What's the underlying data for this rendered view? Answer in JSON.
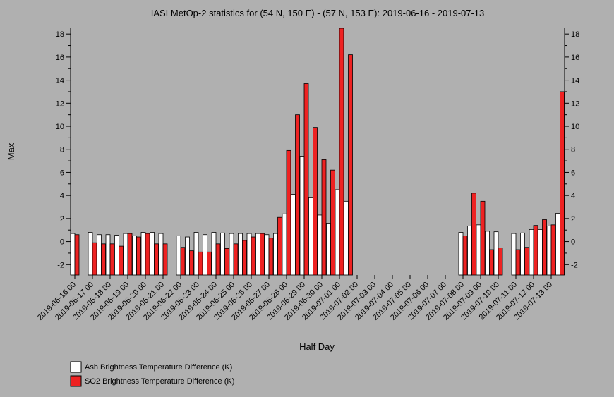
{
  "chart_data": {
    "type": "bar",
    "title": "IASI MetOp-2 statistics for (54 N, 150 E) - (57 N, 153 E): 2019-06-16 - 2019-07-13",
    "x_label": "Half Day",
    "y_label": "Max",
    "categories": [
      "2019-06-16 00",
      null,
      "2019-06-17 00",
      null,
      "2019-06-18 00",
      null,
      "2019-06-19 00",
      null,
      "2019-06-20 00",
      null,
      "2019-06-21 00",
      null,
      "2019-06-22 00",
      null,
      "2019-06-23 00",
      null,
      "2019-06-24 00",
      null,
      "2019-06-25 00",
      null,
      "2019-06-26 00",
      null,
      "2019-06-27 00",
      null,
      "2019-06-28 00",
      null,
      "2019-06-29 00",
      null,
      "2019-06-30 00",
      null,
      "2019-07-01 00",
      null,
      "2019-07-02 00",
      null,
      "2019-07-03 00",
      null,
      "2019-07-04 00",
      null,
      "2019-07-05 00",
      null,
      "2019-07-06 00",
      null,
      "2019-07-07 00",
      null,
      "2019-07-08 00",
      null,
      "2019-07-09 00",
      null,
      "2019-07-10 00",
      null,
      "2019-07-11 00",
      null,
      "2019-07-12 00",
      null,
      "2019-07-13 00",
      null
    ],
    "series": [
      {
        "name": "Ash Brightness Temperature Difference (K)",
        "color": "#ffffff",
        "values": [
          0.7,
          null,
          0.8,
          0.6,
          0.6,
          0.55,
          0.7,
          0.5,
          0.8,
          0.8,
          0.7,
          null,
          0.5,
          0.4,
          0.8,
          0.6,
          0.8,
          0.75,
          0.7,
          0.7,
          0.7,
          0.7,
          0.6,
          0.7,
          2.4,
          4.1,
          7.4,
          3.8,
          2.3,
          1.6,
          4.5,
          3.5,
          null,
          null,
          null,
          null,
          null,
          null,
          null,
          null,
          null,
          null,
          null,
          null,
          0.8,
          1.35,
          1.45,
          0.9,
          0.85,
          null,
          0.7,
          0.75,
          1.05,
          1.05,
          1.35,
          2.45
        ]
      },
      {
        "name": "SO2 Brightness Temperature Difference (K)",
        "color": "#ee2222",
        "values": [
          0.6,
          null,
          -0.1,
          -0.2,
          -0.2,
          -0.4,
          0.7,
          0.4,
          0.7,
          -0.2,
          -0.2,
          null,
          -0.5,
          -0.8,
          -0.9,
          -0.9,
          -0.2,
          -0.6,
          -0.2,
          0.1,
          0.4,
          0.7,
          0.3,
          2.1,
          7.9,
          11.0,
          13.7,
          9.9,
          7.1,
          6.2,
          18.5,
          16.2,
          null,
          null,
          null,
          null,
          null,
          null,
          null,
          null,
          null,
          null,
          null,
          null,
          0.5,
          4.2,
          3.5,
          -0.7,
          -0.55,
          null,
          -0.7,
          -0.5,
          1.4,
          1.9,
          1.45,
          13.0
        ]
      }
    ],
    "ylim": [
      -2.9,
      18.5
    ],
    "yticks": [
      -2,
      0,
      2,
      4,
      6,
      8,
      10,
      12,
      14,
      16,
      18
    ],
    "yminorticks": [
      -1,
      1,
      3,
      5,
      7,
      9,
      11,
      13,
      15,
      17
    ],
    "right_axis": true
  }
}
